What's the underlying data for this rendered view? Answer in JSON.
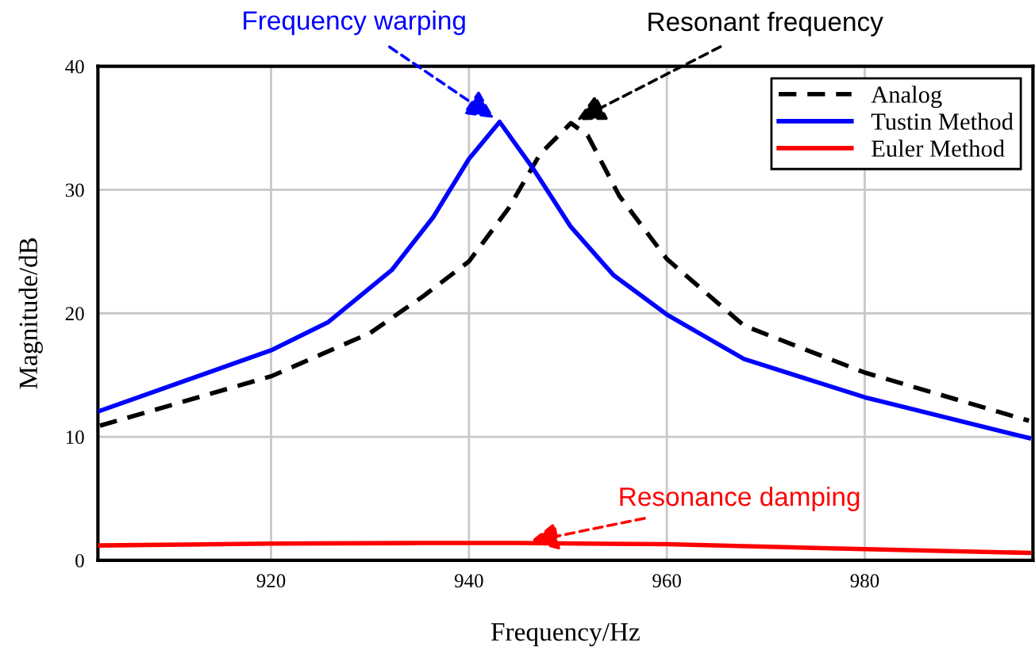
{
  "chart_data": {
    "type": "line",
    "xlabel": "Frequency/Hz",
    "ylabel": "Magnitude/dB",
    "xlim": [
      902.5,
      997
    ],
    "ylim": [
      0,
      40
    ],
    "xticks": [
      920,
      940,
      960,
      980
    ],
    "yticks": [
      0,
      10,
      20,
      30,
      40
    ],
    "grid": true,
    "legend": "top right",
    "series": [
      {
        "name": "Analog",
        "color": "#000000",
        "line_style": "dashed",
        "x": [
          902.7,
          920,
          930,
          935.4,
          940,
          944,
          947.2,
          950.3,
          952,
          955.2,
          960,
          967.8,
          980,
          996.6
        ],
        "values": [
          10.9,
          14.9,
          18.4,
          21.4,
          24.2,
          28.5,
          32.9,
          35.4,
          34.4,
          29.5,
          24.4,
          19.0,
          15.2,
          11.3
        ]
      },
      {
        "name": "Tustin Method",
        "color": "#0000ff",
        "line_style": "solid",
        "x": [
          902.7,
          920,
          925.8,
          932.2,
          936.4,
          940,
          943.1,
          946.5,
          950.3,
          954.6,
          960,
          967.8,
          980,
          996.6
        ],
        "values": [
          12.1,
          17.0,
          19.3,
          23.5,
          27.8,
          32.5,
          35.5,
          31.7,
          27.0,
          23.1,
          19.9,
          16.3,
          13.2,
          9.9
        ]
      },
      {
        "name": "Euler Method",
        "color": "#ff0000",
        "line_style": "solid",
        "x": [
          902.7,
          920,
          935,
          945,
          960,
          980,
          996.6
        ],
        "values": [
          1.2,
          1.35,
          1.4,
          1.4,
          1.3,
          0.9,
          0.6
        ]
      }
    ],
    "annotations": [
      {
        "text": "Resonant frequency",
        "x": 950.3,
        "y": 35.4
      },
      {
        "text": "Frequency warping",
        "x": 943.1,
        "y": 35.5
      },
      {
        "text": "Resonance damping",
        "x": 945.5,
        "y": 1.4
      }
    ]
  }
}
